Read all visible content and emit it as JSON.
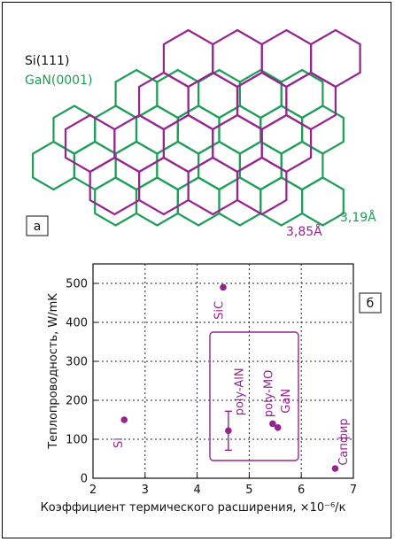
{
  "colors": {
    "si": "#96248f",
    "gan": "#1d9e57",
    "axis": "#111111",
    "label_box": "#96248f"
  },
  "panel_a": {
    "legend": [
      {
        "name": "Si(111)",
        "color": "#111111"
      },
      {
        "name": "GaN(0001)",
        "color": "#1d9e57"
      }
    ],
    "panel_label": "а",
    "si_lattice_label": "3,85Å",
    "gan_lattice_label": "3,19Å"
  },
  "chart_data": {
    "type": "scatter",
    "panel_label": "б",
    "xlabel": "Коэффициент термического расширения, ×10⁻⁶/к",
    "ylabel": "Теплопроводность, W/mK",
    "xlim": [
      2,
      7
    ],
    "ylim": [
      0,
      550
    ],
    "xticks": [
      "2",
      "3",
      "4",
      "5",
      "6",
      "7"
    ],
    "yticks": [
      "0",
      "100",
      "200",
      "300",
      "400",
      "500"
    ],
    "grid": true,
    "points": [
      {
        "label": "Si",
        "x": 2.6,
        "y": 150
      },
      {
        "label": "SiC",
        "x": 4.5,
        "y": 490
      },
      {
        "label": "poly-AlN",
        "x": 4.6,
        "y": 122,
        "err_low": 72,
        "err_high": 172
      },
      {
        "label": "poly-MO",
        "x": 5.45,
        "y": 140
      },
      {
        "label": "GaN",
        "x": 5.55,
        "y": 130
      },
      {
        "label": "Сапфир",
        "x": 6.65,
        "y": 25
      }
    ]
  }
}
